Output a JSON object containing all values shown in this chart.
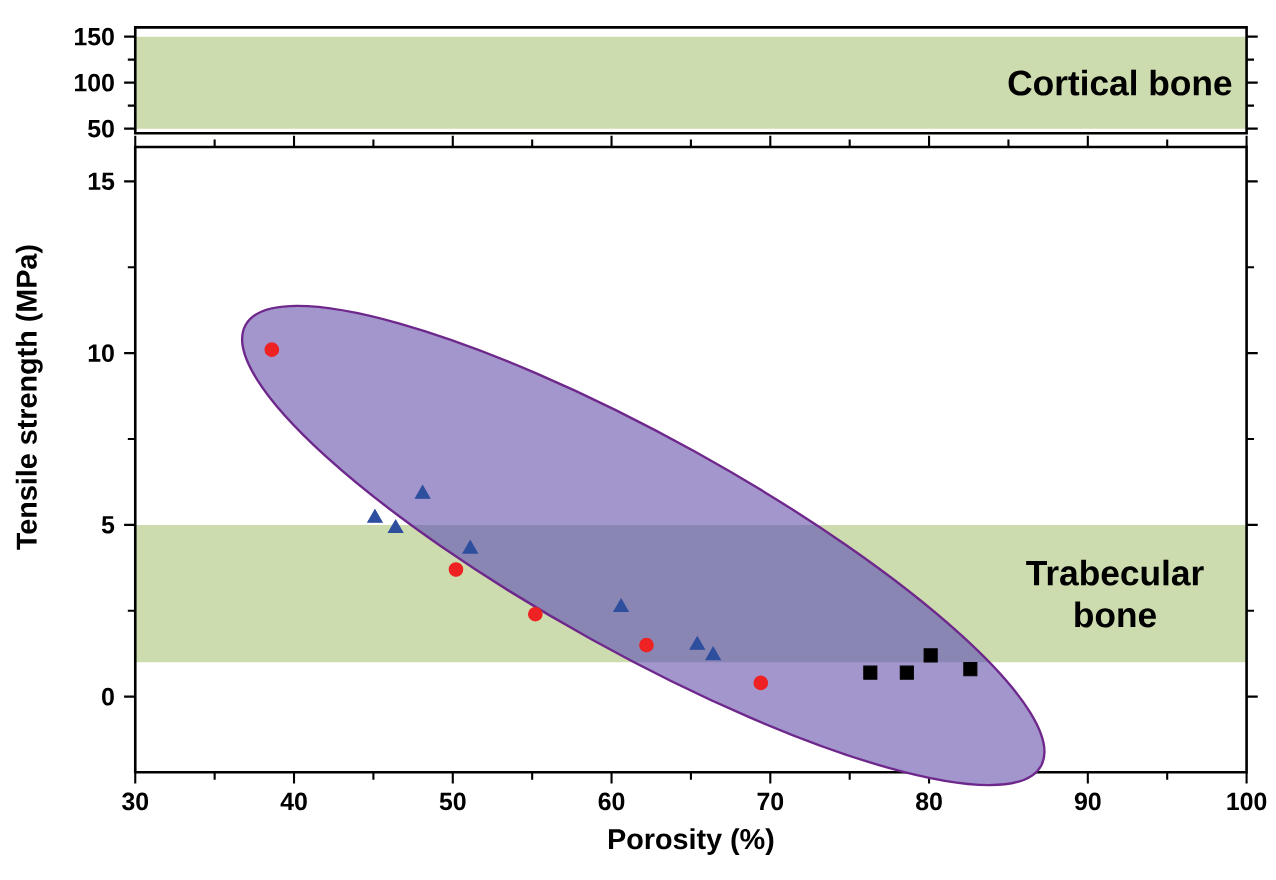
{
  "chart_data": [
    {
      "type": "scatter",
      "xlim": [
        30,
        100
      ],
      "ylim": [
        45,
        160
      ],
      "yticks": [
        50,
        100,
        150
      ],
      "tick_labels": "y",
      "grid": false,
      "bands": [
        {
          "axis": "y",
          "from": 50,
          "to": 150,
          "label": "Cortical bone",
          "color": "#cddcae"
        }
      ]
    },
    {
      "type": "scatter",
      "xlabel": "Porosity (%)",
      "ylabel": "Tensile strength (MPa)",
      "xlim": [
        30,
        100
      ],
      "ylim": [
        -2.2,
        16
      ],
      "xticks": [
        30,
        40,
        50,
        60,
        70,
        80,
        90,
        100
      ],
      "yticks": [
        0,
        5,
        10,
        15
      ],
      "grid": false,
      "bands": [
        {
          "axis": "y",
          "from": 1,
          "to": 5,
          "label": "Trabecular bone",
          "color": "#cddcae"
        }
      ],
      "series": [
        {
          "color": "#ee2222",
          "marker": "circle",
          "x": [
            38.6,
            50.2,
            55.2,
            62.2,
            69.4
          ],
          "values": [
            10.1,
            3.7,
            2.4,
            1.5,
            0.4
          ]
        },
        {
          "color": "#2e4e9e",
          "marker": "triangle",
          "x": [
            45.1,
            46.4,
            48.1,
            51.1,
            60.6,
            65.4,
            66.4
          ],
          "values": [
            5.2,
            4.9,
            5.9,
            4.3,
            2.6,
            1.5,
            1.2
          ]
        },
        {
          "color": "#000000",
          "marker": "square",
          "x": [
            76.3,
            78.6,
            80.1,
            82.6
          ],
          "values": [
            0.7,
            0.7,
            1.2,
            0.8
          ]
        }
      ]
    }
  ]
}
